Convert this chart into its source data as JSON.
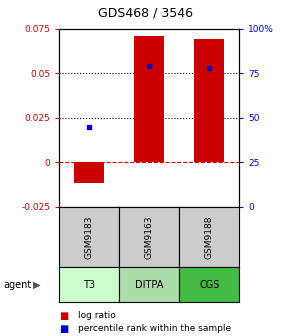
{
  "title": "GDS468 / 3546",
  "samples": [
    "GSM9183",
    "GSM9163",
    "GSM9188"
  ],
  "agents": [
    "T3",
    "DITPA",
    "CGS"
  ],
  "log_ratios": [
    -0.012,
    0.071,
    0.069
  ],
  "percentile_ranks": [
    45,
    79,
    78
  ],
  "agent_colors": [
    "#ccffcc",
    "#aaddaa",
    "#44bb44"
  ],
  "sample_color": "#cccccc",
  "bar_color": "#cc0000",
  "dot_color": "#0000cc",
  "ylim_left": [
    -0.025,
    0.075
  ],
  "ylim_right": [
    0,
    100
  ],
  "yticks_left": [
    -0.025,
    0,
    0.025,
    0.05,
    0.075
  ],
  "yticks_right": [
    0,
    25,
    50,
    75,
    100
  ],
  "ytick_labels_left": [
    "-0.025",
    "0",
    "0.025",
    "0.05",
    "0.075"
  ],
  "ytick_labels_right": [
    "0",
    "25",
    "50",
    "75",
    "100%"
  ],
  "hlines": [
    0.025,
    0.05
  ],
  "zero_line": 0.0,
  "legend_items": [
    "log ratio",
    "percentile rank within the sample"
  ],
  "legend_colors": [
    "#cc0000",
    "#0000cc"
  ],
  "bar_width": 0.5
}
